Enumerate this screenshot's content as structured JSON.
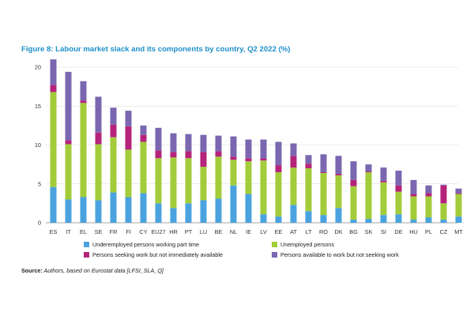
{
  "title": "Figure 8: Labour market slack and its components by country, Q2 2022 (%)",
  "source_label": "Source:",
  "source_text": " Authors, based on Eurostat data [LFSI_SLA_Q]",
  "chart_data": {
    "type": "bar",
    "stacked": true,
    "title": "Figure 8: Labour market slack and its components by country, Q2 2022 (%)",
    "ylim": [
      0,
      20
    ],
    "yticks": [
      0,
      5,
      10,
      15,
      20
    ],
    "grid": true,
    "legend_position": "bottom",
    "categories": [
      "ES",
      "IT",
      "EL",
      "SE",
      "FR",
      "FI",
      "CY",
      "EU27",
      "HR",
      "PT",
      "LU",
      "BE",
      "NL",
      "IE",
      "LV",
      "EE",
      "AT",
      "LT",
      "RO",
      "DK",
      "BG",
      "SK",
      "SI",
      "DE",
      "HU",
      "PL",
      "CZ",
      "MT"
    ],
    "series": [
      {
        "name": "Underemployed persons working part time",
        "color": "#4aa3df",
        "values": [
          4.6,
          3.0,
          3.3,
          2.9,
          3.9,
          3.3,
          3.8,
          2.5,
          1.9,
          2.5,
          2.9,
          3.1,
          4.8,
          3.7,
          1.1,
          0.8,
          2.3,
          1.5,
          1.0,
          1.9,
          0.4,
          0.5,
          1.0,
          1.1,
          0.4,
          0.7,
          0.4,
          0.8
        ]
      },
      {
        "name": "Unemployed persons",
        "color": "#a2cc3a",
        "values": [
          12.2,
          7.1,
          12.1,
          7.2,
          7.1,
          6.1,
          6.6,
          5.8,
          6.5,
          5.8,
          4.3,
          5.4,
          3.3,
          4.2,
          6.9,
          5.7,
          4.8,
          5.5,
          5.4,
          4.2,
          4.3,
          6.0,
          4.2,
          2.9,
          3.0,
          2.7,
          2.1,
          2.9
        ]
      },
      {
        "name": "Persons seeking work but not immediately available",
        "color": "#b6237a",
        "values": [
          0.9,
          0.5,
          0.3,
          1.5,
          1.6,
          3.0,
          0.9,
          1.0,
          0.7,
          0.9,
          1.9,
          0.7,
          0.4,
          0.4,
          0.3,
          0.9,
          1.5,
          0.6,
          0.1,
          0.2,
          0.8,
          0.1,
          0.2,
          0.8,
          0.3,
          0.4,
          2.3,
          0.1
        ]
      },
      {
        "name": "Persons available to work but not seeking work",
        "color": "#7a67b0",
        "values": [
          3.3,
          8.8,
          2.5,
          4.6,
          2.2,
          2.0,
          1.2,
          2.9,
          2.4,
          2.2,
          2.2,
          2.0,
          2.6,
          2.4,
          2.4,
          3.0,
          1.6,
          1.1,
          2.3,
          2.3,
          2.4,
          0.9,
          1.7,
          1.9,
          1.8,
          1.0,
          0.1,
          0.6
        ]
      }
    ]
  }
}
